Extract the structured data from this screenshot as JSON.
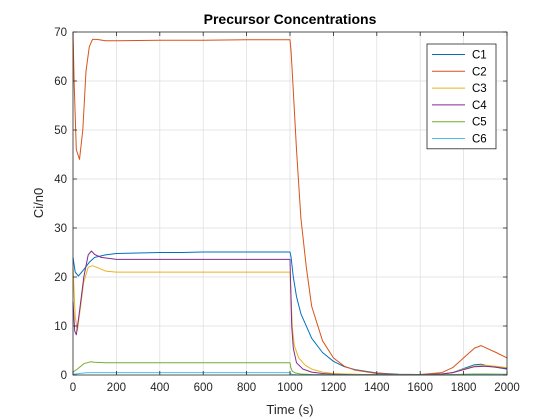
{
  "chart_data": {
    "type": "line",
    "title": "Precursor Concentrations",
    "xlabel": "Time (s)",
    "ylabel": "Ci/n0",
    "xlim": [
      0,
      2000
    ],
    "ylim": [
      0,
      70
    ],
    "xticks": [
      0,
      200,
      400,
      600,
      800,
      1000,
      1200,
      1400,
      1600,
      1800,
      2000
    ],
    "yticks": [
      0,
      10,
      20,
      30,
      40,
      50,
      60,
      70
    ],
    "grid": true,
    "legend_position": "top-right",
    "series": [
      {
        "name": "C1",
        "color": "#0072BD",
        "x": [
          0,
          10,
          25,
          50,
          75,
          100,
          150,
          200,
          300,
          400,
          500,
          600,
          700,
          800,
          900,
          1000,
          1005,
          1015,
          1030,
          1050,
          1100,
          1150,
          1200,
          1250,
          1300,
          1400,
          1500,
          1600,
          1700,
          1750,
          1800,
          1850,
          1880,
          1900,
          1950,
          2000
        ],
        "y": [
          24,
          21,
          20.2,
          21.5,
          23,
          24,
          24.5,
          24.8,
          24.9,
          25,
          25,
          25.1,
          25.1,
          25.1,
          25.1,
          25.1,
          24,
          20,
          16,
          12.5,
          7.5,
          4.6,
          2.8,
          1.7,
          1.1,
          0.4,
          0.15,
          0.1,
          0.2,
          0.5,
          1.3,
          2.1,
          2.2,
          2.0,
          1.6,
          1.2
        ]
      },
      {
        "name": "C2",
        "color": "#D95319",
        "x": [
          0,
          5,
          15,
          30,
          45,
          60,
          75,
          90,
          110,
          150,
          200,
          400,
          600,
          800,
          1000,
          1005,
          1015,
          1030,
          1050,
          1075,
          1100,
          1150,
          1200,
          1250,
          1300,
          1400,
          1500,
          1600,
          1700,
          1750,
          1800,
          1850,
          1880,
          1900,
          1950,
          2000
        ],
        "y": [
          70,
          60,
          46,
          44,
          50,
          62,
          67,
          68.5,
          68.5,
          68.2,
          68.2,
          68.3,
          68.3,
          68.4,
          68.4,
          66,
          58,
          46,
          32,
          22,
          14,
          7,
          3.5,
          1.8,
          1,
          0.3,
          0.1,
          0.1,
          0.5,
          1.5,
          3.5,
          5.5,
          6,
          5.6,
          4.6,
          3.5
        ]
      },
      {
        "name": "C3",
        "color": "#EDB120",
        "x": [
          0,
          10,
          20,
          35,
          50,
          70,
          90,
          120,
          150,
          200,
          400,
          600,
          800,
          1000,
          1005,
          1010,
          1020,
          1040,
          1070,
          1100,
          1150,
          1200,
          1300,
          1400,
          1500,
          1600,
          1700,
          1750,
          1800,
          1850,
          1900,
          1950,
          2000
        ],
        "y": [
          22,
          12,
          9,
          14,
          19,
          22,
          22.3,
          21.8,
          21.2,
          21,
          21,
          21,
          21,
          21,
          16,
          10,
          6,
          3.5,
          2,
          1.2,
          0.6,
          0.3,
          0.15,
          0.05,
          0.05,
          0.05,
          0.2,
          0.5,
          1.2,
          1.8,
          2.0,
          1.8,
          1.5
        ]
      },
      {
        "name": "C4",
        "color": "#7E2F8E",
        "x": [
          0,
          8,
          15,
          30,
          50,
          70,
          85,
          100,
          130,
          200,
          400,
          600,
          800,
          1000,
          1003,
          1008,
          1015,
          1030,
          1060,
          1100,
          1150,
          1200,
          1300,
          1400,
          1500,
          1600,
          1700,
          1750,
          1800,
          1850,
          1900,
          1950,
          2000
        ],
        "y": [
          15,
          9,
          8.2,
          13,
          20,
          24.5,
          25.3,
          24.6,
          24,
          23.6,
          23.6,
          23.6,
          23.6,
          23.6,
          18,
          10,
          5.5,
          2.5,
          1.2,
          0.6,
          0.3,
          0.15,
          0.05,
          0.05,
          0.05,
          0.05,
          0.2,
          0.5,
          1.1,
          1.7,
          1.8,
          1.6,
          1.3
        ]
      },
      {
        "name": "C5",
        "color": "#77AC30",
        "x": [
          0,
          20,
          50,
          80,
          100,
          150,
          200,
          400,
          600,
          800,
          1000,
          1003,
          1010,
          1025,
          1050,
          1100,
          1200,
          1400,
          1600,
          1700,
          1800,
          1850,
          1900,
          2000
        ],
        "y": [
          0.6,
          1.2,
          2.3,
          2.7,
          2.6,
          2.5,
          2.5,
          2.5,
          2.5,
          2.5,
          2.5,
          1.6,
          0.8,
          0.4,
          0.2,
          0.1,
          0.05,
          0.02,
          0.02,
          0.05,
          0.15,
          0.2,
          0.2,
          0.15
        ]
      },
      {
        "name": "C6",
        "color": "#4DBEEE",
        "x": [
          0,
          30,
          60,
          100,
          200,
          400,
          600,
          800,
          1000,
          1003,
          1010,
          1030,
          1100,
          1400,
          1700,
          1800,
          1850,
          1900,
          2000
        ],
        "y": [
          0.15,
          0.3,
          0.45,
          0.5,
          0.5,
          0.5,
          0.5,
          0.5,
          0.5,
          0.25,
          0.1,
          0.05,
          0.02,
          0.01,
          0.01,
          0.03,
          0.05,
          0.05,
          0.04
        ]
      }
    ]
  }
}
